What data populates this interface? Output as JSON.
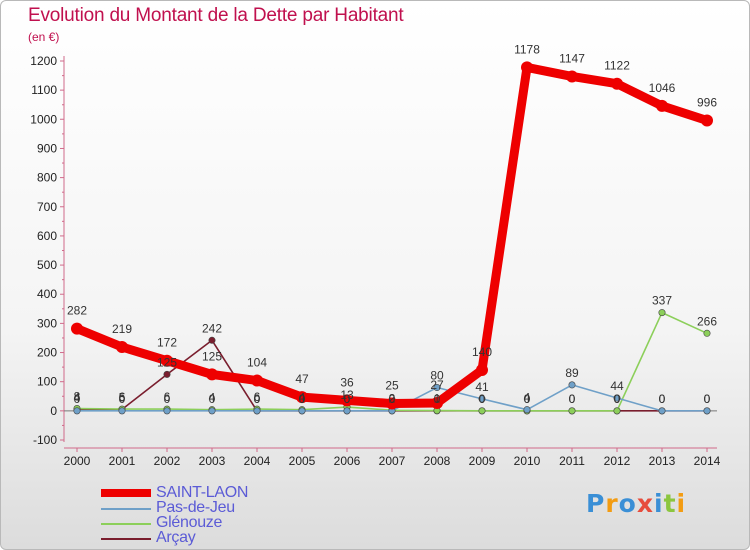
{
  "title": "Evolution du Montant de la Dette par Habitant",
  "unit": "(en €)",
  "brand": "Proxiti",
  "chart_data": {
    "type": "line",
    "x": [
      "2000",
      "2001",
      "2002",
      "2003",
      "2004",
      "2005",
      "2006",
      "2007",
      "2008",
      "2009",
      "2010",
      "2011",
      "2012",
      "2013",
      "2014"
    ],
    "ylim": [
      -100,
      1200
    ],
    "yticks": [
      -100,
      0,
      100,
      200,
      300,
      400,
      500,
      600,
      700,
      800,
      900,
      1000,
      1100,
      1200
    ],
    "grid": false,
    "legend_position": "bottom-left",
    "series": [
      {
        "name": "Arçay",
        "color": "#7a1e2e",
        "values": [
          4,
          5,
          125,
          242,
          0,
          0,
          0,
          0,
          0,
          0,
          0,
          0,
          0,
          0,
          0
        ],
        "labels": [
          "4",
          "5",
          "125",
          "242",
          "0",
          "0",
          "0",
          "0",
          "0",
          "0",
          "0",
          "0",
          "0",
          "0",
          "0"
        ]
      },
      {
        "name": "Glénouze",
        "color": "#8ccf5a",
        "values": [
          8,
          6,
          6,
          4,
          6,
          4,
          13,
          2,
          1,
          0,
          0,
          0,
          0,
          337,
          266
        ],
        "labels": [
          "8",
          "6",
          "6",
          "4",
          "6",
          "4",
          "13",
          "2",
          "1",
          "0",
          "0",
          "0",
          "0",
          "337",
          "266"
        ]
      },
      {
        "name": "Pas-de-Jeu",
        "color": "#6fa0c8",
        "values": [
          0,
          0,
          0,
          0,
          0,
          0,
          0,
          0,
          80,
          41,
          4,
          89,
          44,
          0,
          0
        ],
        "labels": [
          "0",
          "0",
          "0",
          "0",
          "0",
          "0",
          "0",
          "0",
          "80",
          "41",
          "4",
          "89",
          "44",
          "0",
          "0"
        ]
      },
      {
        "name": "SAINT-LAON",
        "color": "#ee0000",
        "values": [
          282,
          219,
          172,
          125,
          104,
          47,
          36,
          25,
          27,
          140,
          1178,
          1147,
          1122,
          1046,
          996
        ],
        "labels": [
          "282",
          "219",
          "172",
          "125",
          "104",
          "47",
          "36",
          "25",
          "27",
          "140",
          "1178",
          "1147",
          "1122",
          "1046",
          "996"
        ]
      }
    ]
  }
}
